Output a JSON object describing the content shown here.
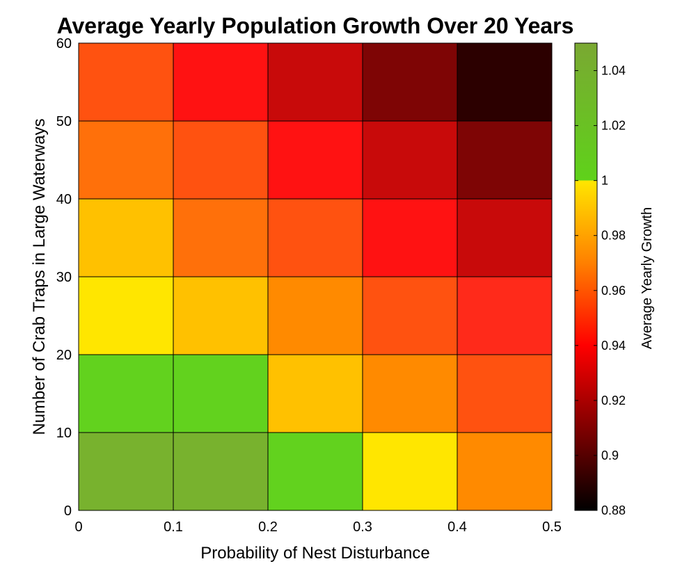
{
  "chart_data": {
    "type": "heatmap",
    "title": "Average Yearly Population Growth Over 20 Years",
    "xlabel": "Probability of Nest Disturbance",
    "ylabel": "Number of Crab Traps in Large Waterways",
    "xlim": [
      0,
      0.5
    ],
    "ylim": [
      0,
      60
    ],
    "x_ticks": [
      "0",
      "0.1",
      "0.2",
      "0.3",
      "0.4",
      "0.5"
    ],
    "y_ticks": [
      "0",
      "10",
      "20",
      "30",
      "40",
      "50",
      "60"
    ],
    "x_bins": [
      [
        0,
        0.1
      ],
      [
        0.1,
        0.2
      ],
      [
        0.2,
        0.3
      ],
      [
        0.3,
        0.4
      ],
      [
        0.4,
        0.5
      ]
    ],
    "y_bins": [
      [
        0,
        10
      ],
      [
        10,
        20
      ],
      [
        20,
        30
      ],
      [
        30,
        40
      ],
      [
        40,
        50
      ],
      [
        50,
        60
      ]
    ],
    "values": [
      [
        1.04,
        1.04,
        1.02,
        1.0,
        0.97
      ],
      [
        1.02,
        1.02,
        0.99,
        0.97,
        0.96
      ],
      [
        1.0,
        0.99,
        0.97,
        0.96,
        0.95
      ],
      [
        0.99,
        0.97,
        0.96,
        0.94,
        0.93
      ],
      [
        0.97,
        0.96,
        0.94,
        0.93,
        0.91
      ],
      [
        0.96,
        0.94,
        0.93,
        0.91,
        0.89
      ]
    ],
    "colors": [
      [
        "#78b22e",
        "#78b22e",
        "#62d21e",
        "#ffe600",
        "#ff8a00"
      ],
      [
        "#62d21e",
        "#62d21e",
        "#ffc100",
        "#ff8a00",
        "#ff5210"
      ],
      [
        "#ffe600",
        "#ffc100",
        "#ff8a00",
        "#ff5210",
        "#ff2a1a"
      ],
      [
        "#ffc100",
        "#ff700a",
        "#ff5210",
        "#ff1212",
        "#c80a0a"
      ],
      [
        "#ff700a",
        "#ff5210",
        "#ff1212",
        "#c80a0a",
        "#7e0505"
      ],
      [
        "#ff5210",
        "#ff1212",
        "#c80a0a",
        "#7e0505",
        "#2c0000"
      ]
    ],
    "colorbar": {
      "label": "Average Yearly Growth",
      "range": [
        0.88,
        1.05
      ],
      "ticks": [
        "0.88",
        "0.9",
        "0.92",
        "0.94",
        "0.96",
        "0.98",
        "1",
        "1.02",
        "1.04"
      ],
      "gradient_stops": [
        {
          "value": 0.88,
          "color": "#000000"
        },
        {
          "value": 0.91,
          "color": "#800000"
        },
        {
          "value": 0.94,
          "color": "#ff0000"
        },
        {
          "value": 0.97,
          "color": "#ff8000"
        },
        {
          "value": 1.0,
          "color": "#ffe600"
        },
        {
          "value": 1.0,
          "color": "#5fd21a"
        },
        {
          "value": 1.05,
          "color": "#7aa832"
        }
      ]
    },
    "grid": false,
    "legend": "none"
  }
}
